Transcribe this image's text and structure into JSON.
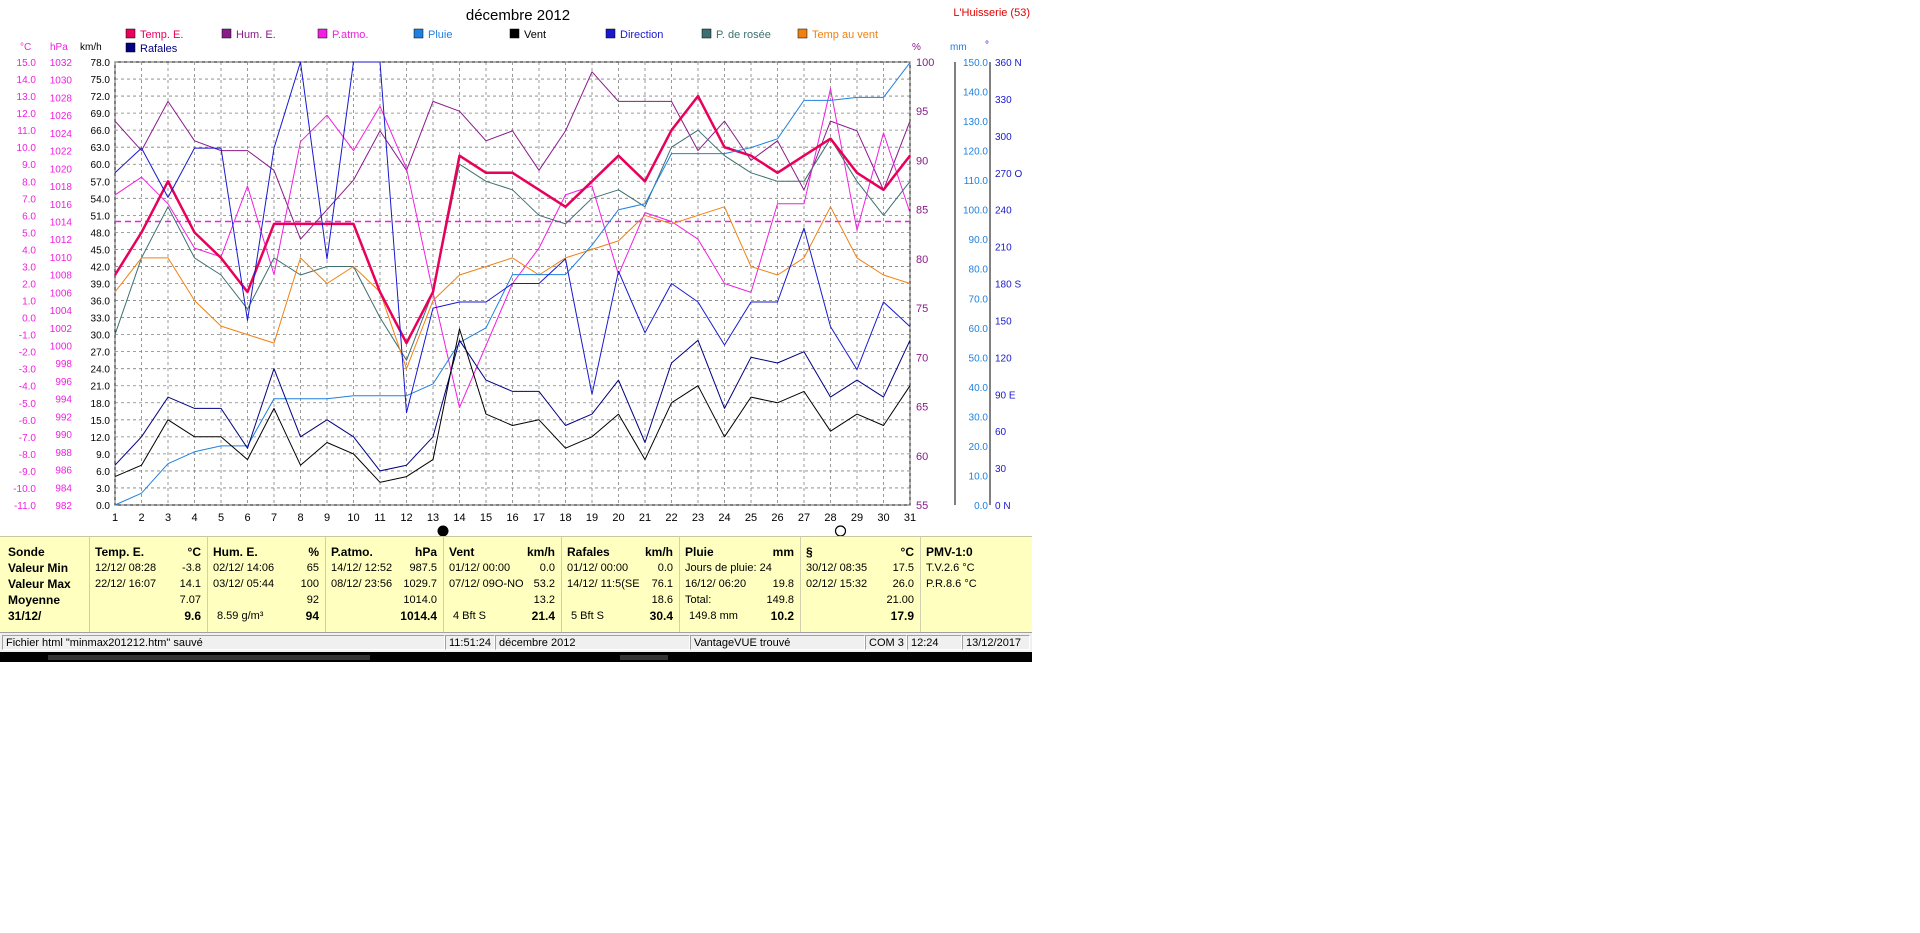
{
  "title": "décembre 2012",
  "brand": "L'Huisserie (53)",
  "colors": {
    "temp": "#e8005a",
    "hum": "#8a1a8a",
    "patmo": "#f020e0",
    "pluie": "#2080e0",
    "vent": "#000000",
    "direction": "#1818d0",
    "rosee": "#3c7070",
    "tvent": "#f08010",
    "rafales": "#000080",
    "grid": "#808080",
    "panel": "#ffffc0"
  },
  "legend": [
    {
      "key": "temp",
      "label": "Temp. E."
    },
    {
      "key": "hum",
      "label": "Hum. E."
    },
    {
      "key": "patmo",
      "label": "P.atmo."
    },
    {
      "key": "pluie",
      "label": "Pluie"
    },
    {
      "key": "vent",
      "label": "Vent"
    },
    {
      "key": "direction",
      "label": "Direction"
    },
    {
      "key": "rosee",
      "label": "P. de rosée"
    },
    {
      "key": "tvent",
      "label": "Temp au vent"
    },
    {
      "key": "rafales",
      "label": "Rafales"
    }
  ],
  "axis_units": {
    "temp": "°C",
    "press": "hPa",
    "wind": "km/h",
    "hum": "%",
    "rain": "mm",
    "dir": "°"
  },
  "chart_data": {
    "type": "line",
    "x": [
      1,
      2,
      3,
      4,
      5,
      6,
      7,
      8,
      9,
      10,
      11,
      12,
      13,
      14,
      15,
      16,
      17,
      18,
      19,
      20,
      21,
      22,
      23,
      24,
      25,
      26,
      27,
      28,
      29,
      30,
      31
    ],
    "xlim": [
      1,
      31
    ],
    "axes": {
      "temp": {
        "ylim": [
          -11,
          15
        ],
        "ticks": [
          15,
          14,
          13,
          12,
          11,
          10,
          9,
          8,
          7,
          6,
          5,
          4,
          3,
          2,
          1,
          0,
          -1,
          -2,
          -3,
          -4,
          -5,
          -6,
          -7,
          -8,
          -9,
          -10,
          -11
        ]
      },
      "press": {
        "ylim": [
          982,
          1032
        ],
        "ticks": [
          1032,
          1030,
          1028,
          1026,
          1024,
          1022,
          1020,
          1018,
          1016,
          1014,
          1012,
          1010,
          1008,
          1006,
          1004,
          1002,
          1000,
          998,
          996,
          994,
          992,
          990,
          988,
          986,
          984,
          982
        ]
      },
      "wind": {
        "ylim": [
          0,
          78
        ],
        "ticks": [
          78,
          75,
          72,
          69,
          66,
          63,
          60,
          57,
          54,
          51,
          48,
          45,
          42,
          39,
          36,
          33,
          30,
          27,
          24,
          21,
          18,
          15,
          12,
          9,
          6,
          3,
          0
        ]
      },
      "hum": {
        "ylim": [
          55,
          100
        ],
        "ticks": [
          100,
          95,
          90,
          85,
          80,
          75,
          70,
          65,
          60,
          55
        ]
      },
      "rain": {
        "ylim": [
          0,
          150
        ],
        "ticks": [
          150,
          140,
          130,
          120,
          110,
          100,
          90,
          80,
          70,
          60,
          50,
          40,
          30,
          20,
          10,
          0
        ]
      },
      "dir": {
        "ylim": [
          0,
          360
        ],
        "ticks": [
          {
            "v": 360,
            "t": "360 N"
          },
          {
            "v": 330,
            "t": "330"
          },
          {
            "v": 300,
            "t": "300"
          },
          {
            "v": 270,
            "t": "270 O"
          },
          {
            "v": 240,
            "t": "240"
          },
          {
            "v": 210,
            "t": "210"
          },
          {
            "v": 180,
            "t": "180 S"
          },
          {
            "v": 150,
            "t": "150"
          },
          {
            "v": 120,
            "t": "120"
          },
          {
            "v": 90,
            "t": "90  E"
          },
          {
            "v": 60,
            "t": "60"
          },
          {
            "v": 30,
            "t": "30"
          },
          {
            "v": 0,
            "t": "0    N"
          }
        ]
      }
    },
    "series": [
      {
        "key": "hum",
        "axis": "hum",
        "width": 1,
        "values": [
          94,
          91,
          96,
          92,
          91,
          91,
          89,
          82,
          85,
          88,
          93,
          89,
          96,
          95,
          92,
          93,
          89,
          93,
          99,
          96,
          96,
          96,
          91,
          94,
          90,
          92,
          87,
          94,
          93,
          87,
          94
        ]
      },
      {
        "key": "patmo",
        "axis": "press",
        "width": 1,
        "values": [
          1017,
          1019,
          1016,
          1011,
          1010,
          1018,
          1008,
          1023,
          1026,
          1022,
          1027,
          1020,
          1006,
          993,
          1000,
          1007,
          1011,
          1017,
          1018,
          1008,
          1015,
          1014,
          1012,
          1007,
          1006,
          1016,
          1016,
          1029,
          1013,
          1024,
          1015
        ]
      },
      {
        "key": "rosee",
        "axis": "temp",
        "width": 1,
        "values": [
          -1,
          3.5,
          6.5,
          3.5,
          2.5,
          0.5,
          3.5,
          2.5,
          3,
          3,
          0,
          -2.5,
          1.5,
          9,
          8,
          7.5,
          6,
          5.5,
          7,
          7.5,
          6.5,
          10,
          11,
          9.5,
          8.5,
          8,
          8,
          10.5,
          8,
          6,
          8
        ]
      },
      {
        "key": "tvent",
        "axis": "temp",
        "width": 1,
        "values": [
          1.5,
          3.5,
          3.5,
          1,
          -0.5,
          -1,
          -1.5,
          3.5,
          2,
          3,
          1.5,
          -3,
          1,
          2.5,
          3,
          3.5,
          2.5,
          3.5,
          4,
          4.5,
          6,
          5.5,
          6,
          6.5,
          3,
          2.5,
          3.5,
          6.5,
          3.5,
          2.5,
          2
        ]
      },
      {
        "key": "temp",
        "axis": "temp",
        "width": 2.5,
        "values": [
          2.5,
          5,
          8,
          5,
          3.5,
          1.5,
          5.5,
          5.5,
          5.5,
          5.5,
          1.5,
          -1.5,
          1.5,
          9.5,
          8.5,
          8.5,
          7.5,
          6.5,
          8,
          9.5,
          8,
          11,
          13,
          10,
          9.5,
          8.5,
          9.5,
          10.5,
          8.5,
          7.5,
          9.5
        ]
      },
      {
        "key": "pluie",
        "axis": "rain",
        "width": 1,
        "values": [
          0,
          4,
          14,
          18,
          20,
          20,
          36,
          36,
          36,
          37,
          37,
          37,
          41,
          55,
          60,
          78,
          78,
          78,
          88,
          100,
          102,
          119,
          119,
          119,
          121,
          124,
          137,
          137,
          138,
          138,
          149.8
        ]
      },
      {
        "key": "direction",
        "axis": "dir",
        "width": 1,
        "values": [
          270,
          290,
          250,
          290,
          290,
          150,
          290,
          360,
          200,
          360,
          360,
          75,
          160,
          165,
          165,
          180,
          180,
          200,
          90,
          190,
          140,
          180,
          165,
          130,
          165,
          165,
          225,
          145,
          110,
          165,
          145
        ]
      },
      {
        "key": "rafales",
        "axis": "wind",
        "width": 1,
        "values": [
          7,
          12,
          19,
          17,
          17,
          10,
          24,
          12,
          15,
          12,
          6,
          7,
          12,
          29,
          22,
          20,
          20,
          14,
          16,
          22,
          11,
          25,
          29,
          17,
          26,
          25,
          27,
          19,
          22,
          19,
          29
        ]
      },
      {
        "key": "vent",
        "axis": "wind",
        "width": 1,
        "values": [
          5,
          7,
          15,
          12,
          12,
          8,
          17,
          7,
          11,
          9,
          4,
          5,
          8,
          31,
          16,
          14,
          15,
          10,
          12,
          16,
          8,
          18,
          21,
          12,
          19,
          18,
          20,
          13,
          16,
          14,
          21
        ]
      }
    ],
    "hline": {
      "axis": "press",
      "value": 1014,
      "key": "patmo"
    }
  },
  "moon": {
    "new_day": "13",
    "full_day": "28"
  },
  "panel": {
    "rows": [
      "Sonde",
      "Valeur Min",
      "Valeur Max",
      "Moyenne",
      "31/12/"
    ],
    "temp": {
      "h": "Temp. E.",
      "u": "°C",
      "min_t": "12/12/  08:28",
      "min_v": "-3.8",
      "max_t": "22/12/  16:07",
      "max_v": "14.1",
      "avg": "7.07",
      "cur": "9.6"
    },
    "hum": {
      "h": "Hum. E.",
      "u": "%",
      "min_t": "02/12/  14:06",
      "min_v": "65",
      "max_t": "03/12/  05:44",
      "max_v": "100",
      "avg": "92",
      "cur_l": "8.59 g/m³",
      "cur": "94"
    },
    "press": {
      "h": "P.atmo.",
      "u": "hPa",
      "min_t": "14/12/  12:52",
      "min_v": "987.5",
      "max_t": "08/12/  23:56",
      "max_v": "1029.7",
      "avg": "1014.0",
      "cur": "1014.4"
    },
    "vent": {
      "h": "Vent",
      "u": "km/h",
      "min_t": "01/12/  00:00",
      "min_v": "0.0",
      "max_t": "07/12/  09O-NO",
      "max_v": "53.2",
      "avg": "13.2",
      "cur_l": "4 Bft S",
      "cur": "21.4"
    },
    "raf": {
      "h": "Rafales",
      "u": "km/h",
      "min_t": "01/12/  00:00",
      "min_v": "0.0",
      "max_t": "14/12/  11:5(SE",
      "max_v": "76.1",
      "avg": "18.6",
      "cur_l": "5 Bft S",
      "cur": "30.4"
    },
    "pluie": {
      "h": "Pluie",
      "u": "mm",
      "r1": "Jours de pluie: 24",
      "r2_t": "16/12/  06:20",
      "r2_v": "19.8",
      "r3_l": "Total:",
      "r3_v": "149.8",
      "cur_l": "149.8 mm",
      "cur": "10.2"
    },
    "tv": {
      "h": "§",
      "u": "°C",
      "min_t": "30/12/  08:35",
      "min_v": "17.5",
      "max_t": "02/12/  15:32",
      "max_v": "26.0",
      "avg": "21.00",
      "cur": "17.9"
    },
    "pmv": {
      "h": "PMV-1:0",
      "r1": "T.V.2.6 °C",
      "r2": "P.R.8.6 °C"
    }
  },
  "status": {
    "file": "Fichier html  \"minmax201212.htm\"  sauvé",
    "time": "11:51:24",
    "month": "décembre 2012",
    "station": "VantageVUE trouvé",
    "com": "COM 3",
    "clock": "12:24",
    "date": "13/12/2017"
  }
}
